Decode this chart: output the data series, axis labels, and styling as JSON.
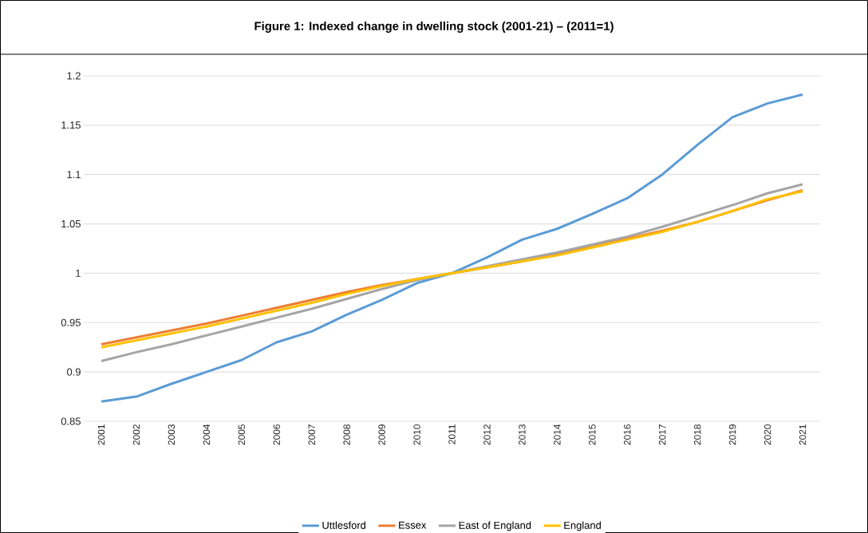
{
  "chart_data": {
    "type": "line",
    "title": "Figure 1: Indexed change in dwelling stock (2001-21) – (2011=1)",
    "categories": [
      "2001",
      "2002",
      "2003",
      "2004",
      "2005",
      "2006",
      "2007",
      "2008",
      "2009",
      "2010",
      "2011",
      "2012",
      "2013",
      "2014",
      "2015",
      "2016",
      "2017",
      "2018",
      "2019",
      "2020",
      "2021"
    ],
    "series": [
      {
        "name": "Uttlesford",
        "color": "#5b9bd5",
        "values": [
          0.87,
          0.875,
          0.888,
          0.9,
          0.912,
          0.93,
          0.941,
          0.958,
          0.973,
          0.99,
          1.0,
          1.016,
          1.034,
          1.045,
          1.06,
          1.076,
          1.1,
          1.13,
          1.158,
          1.172,
          1.181
        ]
      },
      {
        "name": "Essex",
        "color": "#ed7d31",
        "values": [
          0.928,
          0.935,
          0.942,
          0.949,
          0.957,
          0.965,
          0.973,
          0.981,
          0.988,
          0.994,
          1.0,
          1.006,
          1.012,
          1.019,
          1.027,
          1.035,
          1.043,
          1.052,
          1.063,
          1.074,
          1.084
        ]
      },
      {
        "name": "East of England",
        "color": "#a5a5a5",
        "values": [
          0.911,
          0.92,
          0.928,
          0.937,
          0.946,
          0.955,
          0.964,
          0.974,
          0.984,
          0.993,
          1.0,
          1.007,
          1.014,
          1.021,
          1.029,
          1.037,
          1.047,
          1.058,
          1.069,
          1.081,
          1.09
        ]
      },
      {
        "name": "England",
        "color": "#ffc000",
        "values": [
          0.925,
          0.932,
          0.939,
          0.946,
          0.954,
          0.962,
          0.97,
          0.979,
          0.987,
          0.994,
          1.0,
          1.006,
          1.012,
          1.018,
          1.026,
          1.034,
          1.042,
          1.052,
          1.063,
          1.075,
          1.083
        ]
      }
    ],
    "ylim": [
      0.85,
      1.2
    ],
    "yticks": [
      0.85,
      0.9,
      0.95,
      1,
      1.05,
      1.1,
      1.15,
      1.2
    ],
    "grid": "y",
    "legend": "bottom",
    "marker": "none",
    "line_style": "solid"
  }
}
